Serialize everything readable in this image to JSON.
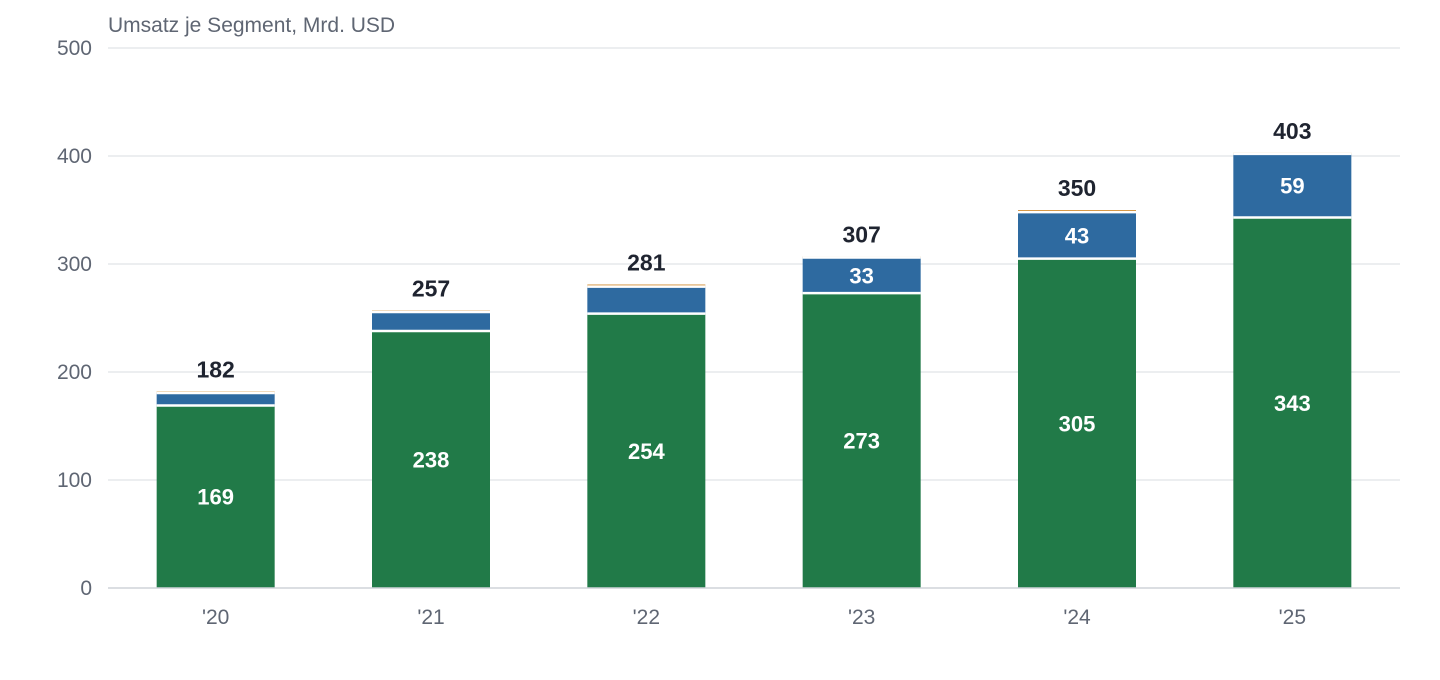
{
  "chart_data": {
    "type": "bar",
    "stacked": true,
    "ylabel": "Umsatz je Segment, Mrd. USD",
    "ylim": [
      0,
      500
    ],
    "yticks": [
      0,
      100,
      200,
      300,
      400,
      500
    ],
    "categories": [
      "'20",
      "'21",
      "'22",
      "'23",
      "'24",
      "'25"
    ],
    "series": [
      {
        "values": [
          169,
          238,
          254,
          273,
          305,
          343
        ],
        "color": "#217a48",
        "labels": [
          "169",
          "238",
          "254",
          "273",
          "305",
          "343"
        ]
      },
      {
        "values": [
          11.5,
          17.5,
          25,
          33,
          43,
          59
        ],
        "color": "#2e6aa0",
        "labels": [
          "",
          "",
          "",
          "33",
          "43",
          "59"
        ]
      },
      {
        "values": [
          1.5,
          1.5,
          2,
          1,
          2,
          1
        ],
        "color": "#d08a2e",
        "labels": [
          "",
          "",
          "",
          "",
          "",
          ""
        ]
      }
    ],
    "totals": [
      "182",
      "257",
      "281",
      "307",
      "350",
      "403"
    ],
    "grid": true
  }
}
